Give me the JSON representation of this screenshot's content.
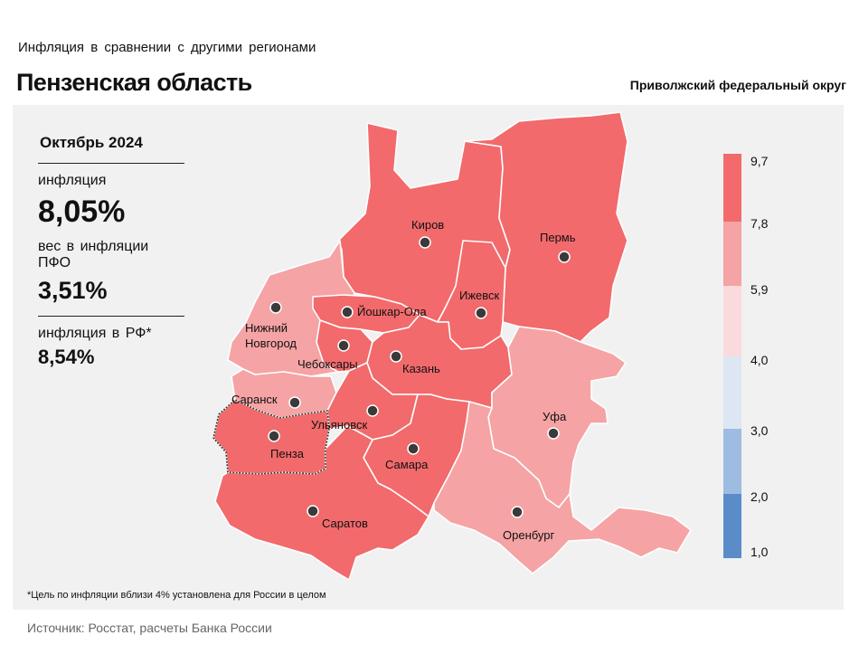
{
  "header": {
    "subtitle": "Инфляция  в сравнении  с другими  регионами",
    "title": "Пензенская область",
    "district": "Приволжский федеральный округ"
  },
  "stats": {
    "period": "Октябрь 2024",
    "inflation_label": "инфляция",
    "inflation_value": "8,05%",
    "weight_label": "вес в инфляции  ПФО",
    "weight_value": "3,51%",
    "rf_label": "инфляция  в РФ*",
    "rf_value": "8,54%"
  },
  "footnote": "*Цель по инфляции вблизи 4% установлена для России в целом",
  "source": "Источник: Росстат, расчеты Банка России",
  "map": {
    "highlighted_region": "Пенза",
    "regions": [
      {
        "id": "kirov",
        "color": "#f26a6c"
      },
      {
        "id": "perm",
        "color": "#f26a6c"
      },
      {
        "id": "udmurtia",
        "color": "#f26a6c"
      },
      {
        "id": "mari-el",
        "color": "#f26a6c"
      },
      {
        "id": "chuvashia",
        "color": "#f26a6c"
      },
      {
        "id": "tatarstan",
        "color": "#f26a6c"
      },
      {
        "id": "ulyanovsk",
        "color": "#f26a6c"
      },
      {
        "id": "samara",
        "color": "#f26a6c"
      },
      {
        "id": "saratov",
        "color": "#f26a6c"
      },
      {
        "id": "penza",
        "color": "#f26a6c"
      },
      {
        "id": "nizhny-novgorod",
        "color": "#f5a3a4"
      },
      {
        "id": "mordovia",
        "color": "#f5a3a4"
      },
      {
        "id": "bashkortostan",
        "color": "#f5a3a4"
      },
      {
        "id": "orenburg",
        "color": "#f5a3a4"
      }
    ],
    "cities": [
      {
        "name": "Киров"
      },
      {
        "name": "Пермь"
      },
      {
        "name": "Ижевск"
      },
      {
        "name": "Йошкар-Ола"
      },
      {
        "name": "Нижний"
      },
      {
        "name": "Новгород"
      },
      {
        "name": "Чебоксары"
      },
      {
        "name": "Казань"
      },
      {
        "name": "Саранск"
      },
      {
        "name": "Ульяновск"
      },
      {
        "name": "Пенза"
      },
      {
        "name": "Самара"
      },
      {
        "name": "Уфа"
      },
      {
        "name": "Саратов"
      },
      {
        "name": "Оренбург"
      }
    ]
  },
  "legend": {
    "ticks": [
      "9,7",
      "7,8",
      "5,9",
      "4,0",
      "3,0",
      "2,0",
      "1,0"
    ],
    "bins": [
      {
        "color": "#f26a6c"
      },
      {
        "color": "#f5a3a4"
      },
      {
        "color": "#fadadd"
      },
      {
        "color": "#dde6f3"
      },
      {
        "color": "#9ebbe1"
      },
      {
        "color": "#5a8cc9"
      }
    ]
  }
}
